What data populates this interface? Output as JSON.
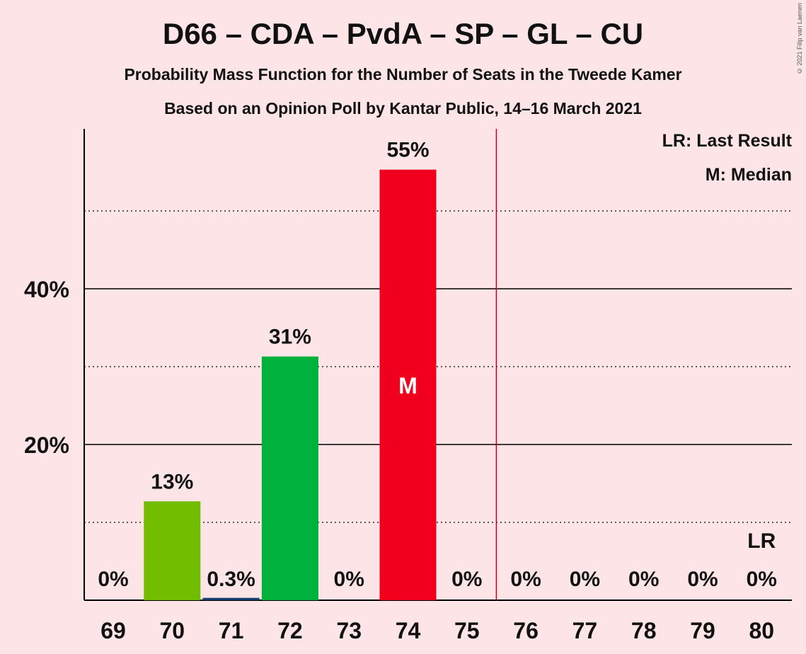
{
  "chart_data": {
    "type": "bar",
    "title": "D66 – CDA – PvdA – SP – GL – CU",
    "subtitles": [
      "Probability Mass Function for the Number of Seats in the Tweede Kamer",
      "Based on an Opinion Poll by Kantar Public, 14–16 March 2021"
    ],
    "copyright": "© 2021 Filip van Laenen",
    "categories": [
      "69",
      "70",
      "71",
      "72",
      "73",
      "74",
      "75",
      "76",
      "77",
      "78",
      "79",
      "80"
    ],
    "values": [
      0,
      12.7,
      0.3,
      31.3,
      0,
      55.3,
      0,
      0,
      0,
      0,
      0,
      0
    ],
    "value_labels": [
      "0%",
      "13%",
      "0.3%",
      "31%",
      "0%",
      "55%",
      "0%",
      "0%",
      "0%",
      "0%",
      "0%",
      "0%"
    ],
    "bar_colors": [
      "#000000",
      "#73bd00",
      "#163f6e",
      "#00b13d",
      "#000000",
      "#f0001c",
      "#000000",
      "#000000",
      "#000000",
      "#000000",
      "#000000",
      "#000000"
    ],
    "ylim": [
      0,
      60
    ],
    "y_ticks": [
      20,
      40
    ],
    "y_tick_labels": [
      "20%",
      "40%"
    ],
    "minor_gridlines": [
      10,
      30,
      50
    ],
    "median_category": "74",
    "median_marker": "M",
    "last_result_category": "80",
    "last_result_marker": "LR",
    "majority_line_between": [
      "75",
      "76"
    ],
    "legend": {
      "position": "top-right",
      "items": [
        "LR: Last Result",
        "M: Median"
      ]
    },
    "colors": {
      "background": "#fde4e6",
      "majority_line": "#c8001e"
    }
  }
}
